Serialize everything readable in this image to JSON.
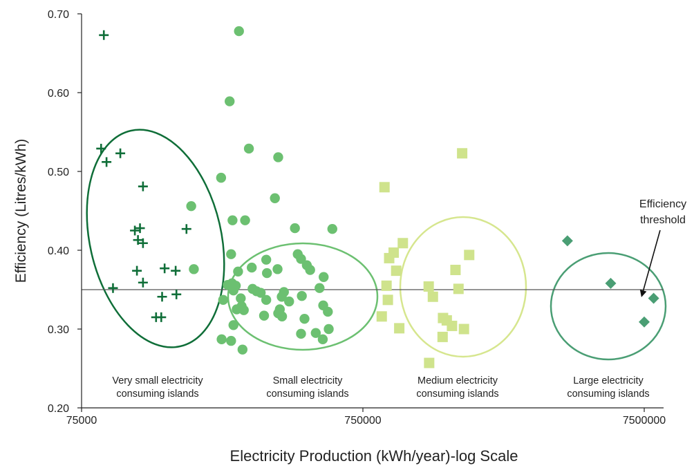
{
  "chart_data": {
    "type": "scatter",
    "xlabel": "Electricity Production (kWh/year)-log Scale",
    "ylabel": "Efficiency (Litres/kWh)",
    "x_scale": "log",
    "xlim": [
      75000,
      10000000
    ],
    "ylim": [
      0.2,
      0.7
    ],
    "x_ticks": [
      75000,
      750000,
      7500000
    ],
    "x_tick_labels": [
      "75000",
      "750000",
      "7500000"
    ],
    "y_ticks": [
      0.2,
      0.3,
      0.4,
      0.5,
      0.6,
      0.7
    ],
    "y_tick_labels": [
      "0.20",
      "0.30",
      "0.40",
      "0.50",
      "0.60",
      "0.70"
    ],
    "grid": false,
    "threshold": {
      "y": 0.35,
      "label_line1": "Efficiency",
      "label_line2": "threshold"
    },
    "colors": {
      "very_small": "#0f6e38",
      "small": "#6cc071",
      "medium": "#cfe38c",
      "large": "#4a9e74",
      "medium_ring": "#d6e68e",
      "axis": "#222222",
      "threshold_line": "#555555"
    },
    "series": [
      {
        "marker": "plus",
        "color": "#0f6e38",
        "group_label_line1": "Very small electricity",
        "group_label_line2": "consuming islands",
        "points": [
          [
            90000,
            0.673
          ],
          [
            88000,
            0.529
          ],
          [
            92000,
            0.512
          ],
          [
            103000,
            0.523
          ],
          [
            97000,
            0.352
          ],
          [
            124000,
            0.481
          ],
          [
            116000,
            0.425
          ],
          [
            121000,
            0.428
          ],
          [
            119000,
            0.413
          ],
          [
            124000,
            0.409
          ],
          [
            118000,
            0.374
          ],
          [
            124000,
            0.359
          ],
          [
            148000,
            0.377
          ],
          [
            162000,
            0.374
          ],
          [
            177000,
            0.427
          ],
          [
            163000,
            0.344
          ],
          [
            145000,
            0.341
          ],
          [
            138000,
            0.315
          ],
          [
            144000,
            0.315
          ]
        ]
      },
      {
        "marker": "circle",
        "color": "#6cc071",
        "group_label_line1": "Small electricity",
        "group_label_line2": "consuming islands",
        "points": [
          [
            272000,
            0.678
          ],
          [
            252000,
            0.589
          ],
          [
            295000,
            0.529
          ],
          [
            375000,
            0.518
          ],
          [
            235000,
            0.492
          ],
          [
            365000,
            0.466
          ],
          [
            184000,
            0.456
          ],
          [
            258000,
            0.438
          ],
          [
            286000,
            0.438
          ],
          [
            430000,
            0.428
          ],
          [
            584000,
            0.427
          ],
          [
            255000,
            0.395
          ],
          [
            440000,
            0.395
          ],
          [
            188000,
            0.376
          ],
          [
            270000,
            0.373
          ],
          [
            302000,
            0.378
          ],
          [
            340000,
            0.388
          ],
          [
            373000,
            0.376
          ],
          [
            342000,
            0.371
          ],
          [
            452000,
            0.389
          ],
          [
            474000,
            0.381
          ],
          [
            487000,
            0.375
          ],
          [
            544000,
            0.366
          ],
          [
            248000,
            0.356
          ],
          [
            257000,
            0.358
          ],
          [
            265000,
            0.355
          ],
          [
            260000,
            0.349
          ],
          [
            304000,
            0.351
          ],
          [
            314000,
            0.348
          ],
          [
            325000,
            0.346
          ],
          [
            393000,
            0.347
          ],
          [
            386000,
            0.341
          ],
          [
            410000,
            0.335
          ],
          [
            455000,
            0.342
          ],
          [
            526000,
            0.352
          ],
          [
            239000,
            0.337
          ],
          [
            276000,
            0.339
          ],
          [
            278000,
            0.329
          ],
          [
            267000,
            0.325
          ],
          [
            283000,
            0.324
          ],
          [
            340000,
            0.337
          ],
          [
            380000,
            0.325
          ],
          [
            375000,
            0.32
          ],
          [
            387000,
            0.316
          ],
          [
            334000,
            0.317
          ],
          [
            542000,
            0.33
          ],
          [
            563000,
            0.322
          ],
          [
            465000,
            0.313
          ],
          [
            260000,
            0.305
          ],
          [
            236000,
            0.287
          ],
          [
            255000,
            0.285
          ],
          [
            280000,
            0.274
          ],
          [
            452000,
            0.294
          ],
          [
            510000,
            0.295
          ],
          [
            540000,
            0.287
          ],
          [
            567000,
            0.3
          ]
        ]
      },
      {
        "marker": "square",
        "color": "#cfe38c",
        "group_label_line1": "Medium electricity",
        "group_label_line2": "consuming islands",
        "points": [
          [
            895000,
            0.48
          ],
          [
            875000,
            0.316
          ],
          [
            1040000,
            0.409
          ],
          [
            965000,
            0.397
          ],
          [
            930000,
            0.39
          ],
          [
            985000,
            0.374
          ],
          [
            910000,
            0.355
          ],
          [
            920000,
            0.337
          ],
          [
            1010000,
            0.301
          ],
          [
            1600000,
            0.375
          ],
          [
            1790000,
            0.394
          ],
          [
            1690000,
            0.523
          ],
          [
            1640000,
            0.351
          ],
          [
            1285000,
            0.354
          ],
          [
            1330000,
            0.341
          ],
          [
            1445000,
            0.314
          ],
          [
            1490000,
            0.311
          ],
          [
            1555000,
            0.304
          ],
          [
            1715000,
            0.3
          ],
          [
            1440000,
            0.29
          ],
          [
            1290000,
            0.257
          ]
        ]
      },
      {
        "marker": "diamond",
        "color": "#4a9e74",
        "group_label_line1": "Large electricity",
        "group_label_line2": "consuming islands",
        "points": [
          [
            4000000,
            0.412
          ],
          [
            5700000,
            0.358
          ],
          [
            8100000,
            0.339
          ],
          [
            7500000,
            0.309
          ]
        ]
      }
    ]
  }
}
